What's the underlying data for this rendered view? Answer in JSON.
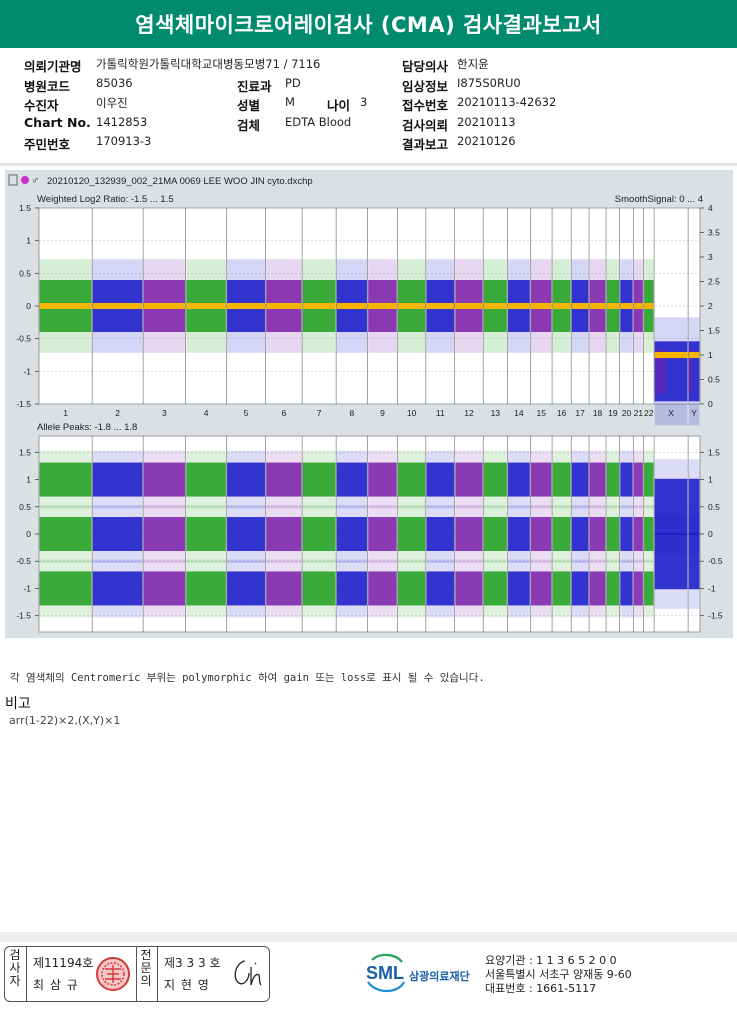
{
  "title": "염색체마이크로어레이검사 (CMA) 검사결과보고서",
  "patient_info": {
    "institution_label": "의뢰기관명",
    "institution_value": "가톨릭학원가톨릭대학교대병동모병71 / 7116",
    "doctor_label": "담당의사",
    "doctor_value": "한지윤",
    "hospital_code_label": "병원코드",
    "hospital_code_value": "85036",
    "dept_label": "진료과",
    "dept_value": "PD",
    "clinical_label": "임상정보",
    "clinical_value": "I875S0RU0",
    "patient_label": "수진자",
    "patient_value": "이우진",
    "sex_label": "성별",
    "sex_value": "M",
    "age_label": "나이",
    "age_value": "3",
    "receipt_label": "접수번호",
    "receipt_value": "20210113-42632",
    "chart_label": "Chart No.",
    "chart_value": "1412853",
    "specimen_label": "검체",
    "specimen_value": "EDTA Blood",
    "request_label": "검사의뢰",
    "request_value": "20210113",
    "rrn_label": "주민번호",
    "rrn_value": "170913-3",
    "report_label": "결과보고",
    "report_value": "20210126"
  },
  "chart_header": {
    "filename": "20210120_132939_002_21MA 0069 LEE WOO JIN cyto.dxchp"
  },
  "chart_data": [
    {
      "type": "scatter",
      "title": "Weighted Log2 Ratio: -1.5 ... 1.5",
      "right_title": "SmoothSignal: 0 ... 4",
      "ylim": [
        -1.5,
        1.5
      ],
      "y2lim": [
        0,
        4
      ],
      "yticks": [
        "1.5",
        "1",
        "0.5",
        "0",
        "-0.5",
        "-1",
        "-1.5"
      ],
      "y2ticks": [
        "4",
        "3.5",
        "3",
        "2.5",
        "2",
        "1.5",
        "1",
        "0.5",
        "0"
      ],
      "categories": [
        "1",
        "2",
        "3",
        "4",
        "5",
        "6",
        "7",
        "8",
        "9",
        "10",
        "11",
        "12",
        "13",
        "14",
        "15",
        "16",
        "17",
        "18",
        "19",
        "20",
        "21",
        "22",
        "X",
        "Y"
      ],
      "log2_means": [
        0,
        0,
        0,
        0,
        0,
        0,
        0,
        0,
        0,
        0,
        0,
        0,
        0,
        0,
        0,
        0,
        0,
        0,
        0,
        0,
        0,
        0,
        -1,
        -1
      ],
      "smooth_signal": [
        2,
        2,
        2,
        2,
        2,
        2,
        2,
        2,
        2,
        2,
        2,
        2,
        2,
        2,
        2,
        2,
        2,
        2,
        2,
        2,
        2,
        2,
        1,
        1
      ],
      "colors": {
        "green": "#1e9e1e",
        "blue": "#1616c8",
        "purple": "#7a1ea8",
        "smooth": "#f5b400"
      },
      "grid": true
    },
    {
      "type": "scatter",
      "title": "Allele Peaks: -1.8 ... 1.8",
      "ylim": [
        -1.8,
        1.8
      ],
      "yticks": [
        "1.5",
        "1",
        "0.5",
        "0",
        "-0.5",
        "-1",
        "-1.5"
      ],
      "y2ticks": [
        "1.5",
        "1",
        "0.5",
        "0",
        "-0.5",
        "-1",
        "-1.5"
      ],
      "peaks": [
        1,
        0,
        -1
      ],
      "peaks_sex": [
        0.5,
        -0.5
      ],
      "grid": true
    }
  ],
  "note": "각 염색체의 Centromeric 부위는 polymorphic 하여 gain 또는 loss로 표시 될 수 있습니다.",
  "remarks": {
    "title": "비고",
    "body": "arr(1-22)×2,(X,Y)×1"
  },
  "signatures": {
    "examiner_title_chars": [
      "검",
      "사",
      "자"
    ],
    "examiner_license": "제11194호",
    "examiner_name": "최 삼 규",
    "specialist_title_chars": [
      "전",
      "문",
      "의"
    ],
    "specialist_license": "제3 3 3 호",
    "specialist_name": "지 현 영"
  },
  "organization": {
    "logo_text": "SML",
    "name": "삼광의료재단",
    "line1": "요양기관 : 1 1 3 6 5 2 0 0",
    "line2": "서울특별시 서초구 양재동 9-60",
    "line3": "대표번호 : 1661-5117"
  }
}
